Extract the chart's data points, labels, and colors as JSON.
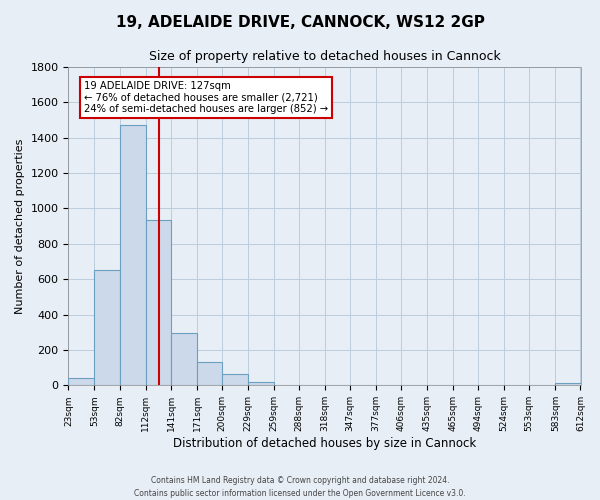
{
  "title": "19, ADELAIDE DRIVE, CANNOCK, WS12 2GP",
  "subtitle": "Size of property relative to detached houses in Cannock",
  "xlabel": "Distribution of detached houses by size in Cannock",
  "ylabel": "Number of detached properties",
  "bin_edges": [
    23,
    53,
    82,
    112,
    141,
    171,
    200,
    229,
    259,
    288,
    318,
    347,
    377,
    406,
    435,
    465,
    494,
    524,
    553,
    583,
    612
  ],
  "bar_heights": [
    40,
    650,
    1470,
    935,
    295,
    130,
    65,
    20,
    0,
    0,
    0,
    0,
    0,
    0,
    0,
    0,
    0,
    0,
    0,
    15
  ],
  "bar_color": "#ccd9ea",
  "bar_edge_color": "#6a9fc0",
  "bar_edge_width": 0.8,
  "grid_color": "#bbccdd",
  "background_color": "#e8eef6",
  "vline_x": 127,
  "vline_color": "#cc0000",
  "annotation_line1": "19 ADELAIDE DRIVE: 127sqm",
  "annotation_line2": "← 76% of detached houses are smaller (2,721)",
  "annotation_line3": "24% of semi-detached houses are larger (852) →",
  "annotation_box_color": "#ffffff",
  "annotation_box_edge": "#cc0000",
  "ylim": [
    0,
    1800
  ],
  "yticks": [
    0,
    200,
    400,
    600,
    800,
    1000,
    1200,
    1400,
    1600,
    1800
  ],
  "tick_labels": [
    "23sqm",
    "53sqm",
    "82sqm",
    "112sqm",
    "141sqm",
    "171sqm",
    "200sqm",
    "229sqm",
    "259sqm",
    "288sqm",
    "318sqm",
    "347sqm",
    "377sqm",
    "406sqm",
    "435sqm",
    "465sqm",
    "494sqm",
    "524sqm",
    "553sqm",
    "583sqm",
    "612sqm"
  ],
  "footer_line1": "Contains HM Land Registry data © Crown copyright and database right 2024.",
  "footer_line2": "Contains public sector information licensed under the Open Government Licence v3.0."
}
